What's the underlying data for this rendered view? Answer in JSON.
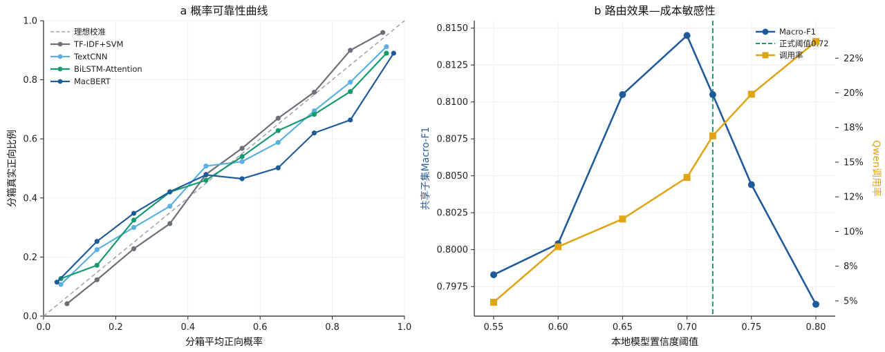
{
  "chart_data": [
    {
      "type": "line",
      "title": "a  概率可靠性曲线",
      "xlabel": "分箱平均正向概率",
      "ylabel": "分箱真实正向比例",
      "xlim": [
        0,
        1
      ],
      "ylim": [
        0,
        1
      ],
      "x_ticks": [
        "0.0",
        "0.2",
        "0.4",
        "0.6",
        "0.8",
        "1.0"
      ],
      "y_ticks": [
        "0.0",
        "0.2",
        "0.4",
        "0.6",
        "0.8",
        "1.0"
      ],
      "grid": true,
      "legend": "top-left",
      "reference": {
        "name": "理想校准",
        "x": [
          0,
          1
        ],
        "y": [
          0,
          1
        ],
        "color": "#a0a4ac",
        "style": "dashed"
      },
      "series": [
        {
          "name": "TF-IDF+SVM",
          "color": "#6c6e78",
          "x": [
            0.065,
            0.148,
            0.25,
            0.35,
            0.45,
            0.55,
            0.65,
            0.75,
            0.85,
            0.94
          ],
          "y": [
            0.042,
            0.123,
            0.228,
            0.313,
            0.48,
            0.568,
            0.67,
            0.758,
            0.9,
            0.96
          ]
        },
        {
          "name": "TextCNN",
          "color": "#5ab0e0",
          "x": [
            0.048,
            0.148,
            0.25,
            0.35,
            0.45,
            0.55,
            0.65,
            0.75,
            0.85,
            0.95
          ],
          "y": [
            0.107,
            0.225,
            0.3,
            0.372,
            0.508,
            0.523,
            0.588,
            0.695,
            0.792,
            0.912
          ]
        },
        {
          "name": "BiLSTM-Attention",
          "color": "#15996e",
          "x": [
            0.048,
            0.148,
            0.25,
            0.35,
            0.45,
            0.55,
            0.65,
            0.75,
            0.85,
            0.95
          ],
          "y": [
            0.127,
            0.172,
            0.325,
            0.42,
            0.46,
            0.54,
            0.628,
            0.683,
            0.76,
            0.89
          ]
        },
        {
          "name": "MacBERT",
          "color": "#1f5a9a",
          "x": [
            0.037,
            0.148,
            0.25,
            0.35,
            0.45,
            0.55,
            0.65,
            0.75,
            0.85,
            0.97
          ],
          "y": [
            0.115,
            0.253,
            0.348,
            0.421,
            0.478,
            0.465,
            0.502,
            0.62,
            0.664,
            0.89
          ]
        }
      ]
    },
    {
      "type": "line",
      "title": "b  路由效果—成本敏感性",
      "xlabel": "本地模型置信度阈值",
      "ylabel": "共享子集Macro-F1",
      "y2label": "Qwen调用率",
      "x": [
        0.55,
        0.6,
        0.65,
        0.7,
        0.72,
        0.75,
        0.8
      ],
      "xlim": [
        0.535,
        0.815
      ],
      "ylim": [
        0.7955,
        0.8155
      ],
      "y2lim": [
        3.5,
        24.8
      ],
      "x_ticks": [
        "0.55",
        "0.60",
        "0.65",
        "0.70",
        "0.75",
        "0.80"
      ],
      "y_ticks": [
        "0.7975",
        "0.8000",
        "0.8025",
        "0.8050",
        "0.8075",
        "0.8100",
        "0.8125",
        "0.8150"
      ],
      "y2_ticks": [
        "5%",
        "8%",
        "10%",
        "12%",
        "15%",
        "18%",
        "20%",
        "22%"
      ],
      "grid": true,
      "legend": "top-right",
      "ylabel_color": "#2d5f9e",
      "y2label_color": "#e0a516",
      "vline": {
        "name": "正式阈值0.72",
        "x": 0.72,
        "color": "#15996e",
        "style": "dashed"
      },
      "series": [
        {
          "name": "Macro-F1",
          "axis": "left",
          "color": "#1f5a9a",
          "marker": "circle",
          "values": [
            0.7983,
            0.8004,
            0.8105,
            0.8145,
            0.8105,
            0.8044,
            0.7963
          ]
        },
        {
          "name": "调用率",
          "axis": "right",
          "color": "#e0a516",
          "marker": "square",
          "values": [
            4.5,
            8.5,
            10.5,
            13.5,
            16.5,
            19.5,
            23.3
          ]
        }
      ]
    }
  ]
}
